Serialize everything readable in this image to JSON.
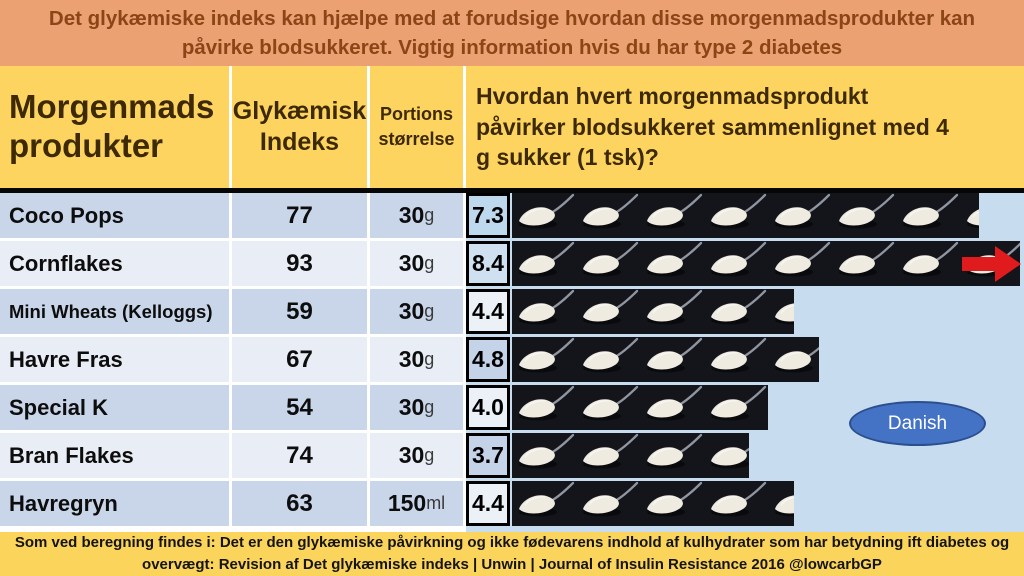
{
  "banner": {
    "text": "Det glykæmiske indeks kan hjælpe med at forudsige hvordan disse morgenmadsprodukter kan\npåvirke blodsukkeret. Vigtig information hvis du har type 2 diabetes"
  },
  "table": {
    "headers": {
      "product": "Morgenmads\nprodukter",
      "gi": "Glykæmisk\nIndeks",
      "portion": "Portions\nstørrelse",
      "question": "Hvordan hvert morgenmadsprodukt\npåvirker blodsukkeret sammenlignet med 4\ng sukker (1 tsk)?"
    },
    "rows": [
      {
        "product": "Coco Pops",
        "gi": "77",
        "portion_qty": "30",
        "portion_unit": "g",
        "spoons_label": "7.3",
        "spoons": 7.3,
        "shade": "blue",
        "box_bg": "#BED8EE"
      },
      {
        "product": "Cornflakes",
        "gi": "93",
        "portion_qty": "30",
        "portion_unit": "g",
        "spoons_label": "8.4",
        "spoons": 8.4,
        "shade": "light",
        "box_bg": "#CFE0F1",
        "overflow_arrow": true
      },
      {
        "product": "Mini Wheats (Kelloggs)",
        "gi": "59",
        "portion_qty": "30",
        "portion_unit": "g",
        "spoons_label": "4.4",
        "spoons": 4.4,
        "shade": "blue",
        "box_bg": "#ECF1F8",
        "small_font": true
      },
      {
        "product": "Havre Fras",
        "gi": "67",
        "portion_qty": "30",
        "portion_unit": "g",
        "spoons_label": "4.8",
        "spoons": 4.8,
        "shade": "light",
        "box_bg": "#C5D3E8"
      },
      {
        "product": "Special K",
        "gi": "54",
        "portion_qty": "30",
        "portion_unit": "g",
        "spoons_label": "4.0",
        "spoons": 4.0,
        "shade": "blue",
        "box_bg": "#ECF1F8"
      },
      {
        "product": "Bran Flakes",
        "gi": "74",
        "portion_qty": "30",
        "portion_unit": "g",
        "spoons_label": "3.7",
        "spoons": 3.7,
        "shade": "light",
        "box_bg": "#C5D3E8"
      },
      {
        "product": "Havregryn",
        "gi": "63",
        "portion_qty": "150",
        "portion_unit": "ml",
        "spoons_label": "4.4",
        "spoons": 4.4,
        "shade": "blue",
        "box_bg": "#ECF1F8"
      }
    ]
  },
  "badge": {
    "label": "Danish"
  },
  "footer": {
    "text": "Som ved beregning findes i: Det er den glykæmiske påvirkning og ikke fødevarens indhold af kulhydrater som har betydning ift diabetes og\novervægt: Revision af Det glykæmiske indeks | Unwin | Journal of Insulin Resistance 2016   @lowcarbGP"
  },
  "colors": {
    "banner_bg": "#ECA173",
    "banner_text": "#8B4517",
    "header_bg": "#FCD45F",
    "header_text": "#3E2905",
    "row_blue": "#C9D6EA",
    "row_light": "#E9EDF5",
    "spoon_column_bg": "#C8DCEF",
    "spoon_tile_bg": "#14141B",
    "footer_bg": "#FBD45C",
    "arrow_red": "#E01B1E",
    "badge_fill": "#4472C4",
    "badge_border": "#2B4F8E"
  },
  "chart_data": {
    "type": "table",
    "title": "Det glykæmiske indeks kan hjælpe med at forudsige hvordan disse morgenmadsprodukter kan påvirke blodsukkeret. Vigtig information hvis du har type 2 diabetes",
    "categories": [
      "Coco Pops",
      "Cornflakes",
      "Mini Wheats (Kelloggs)",
      "Havre Fras",
      "Special K",
      "Bran Flakes",
      "Havregryn"
    ],
    "series": [
      {
        "name": "Glykæmisk Indeks",
        "values": [
          77,
          93,
          59,
          67,
          54,
          74,
          63
        ]
      },
      {
        "name": "Portions størrelse",
        "values": [
          "30g",
          "30g",
          "30g",
          "30g",
          "30g",
          "30g",
          "150ml"
        ]
      },
      {
        "name": "Teskefulde sukker (sammenlignet med 4 g sukker = 1 tsk)",
        "values": [
          7.3,
          8.4,
          4.4,
          4.8,
          4.0,
          3.7,
          4.4
        ]
      }
    ],
    "legend_position": "none",
    "annotations": [
      "Danish",
      "Cornflakes-rækken fortsætter ud over tabellen (rød pil)"
    ]
  }
}
